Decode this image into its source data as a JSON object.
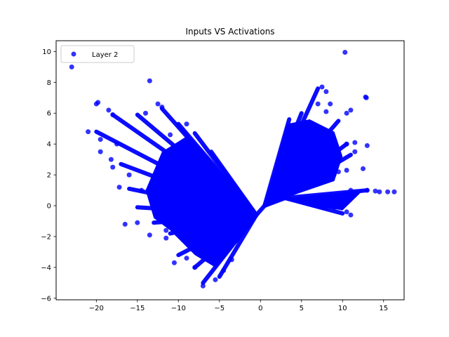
{
  "chart_data": {
    "type": "scatter",
    "title": "Inputs VS Activations",
    "xlabel": "",
    "ylabel": "",
    "xlim": [
      -24.9,
      17.5
    ],
    "ylim": [
      -6.1,
      10.7
    ],
    "xticks": [
      -20,
      -15,
      -10,
      -5,
      0,
      5,
      10,
      15
    ],
    "yticks": [
      -6,
      -4,
      -2,
      0,
      2,
      4,
      6,
      8,
      10
    ],
    "grid": false,
    "legend_position": "top-left",
    "series": [
      {
        "name": "Layer 2",
        "color": "#0000ff",
        "fan_segments": [
          {
            "from": [
              -0.5,
              -0.6
            ],
            "to": [
              -20,
              4.8
            ]
          },
          {
            "from": [
              -0.5,
              -0.6
            ],
            "to": [
              -18,
              5.9
            ]
          },
          {
            "from": [
              -0.5,
              -0.6
            ],
            "to": [
              -15,
              5.9
            ]
          },
          {
            "from": [
              -0.5,
              -0.6
            ],
            "to": [
              -12,
              6.3
            ]
          },
          {
            "from": [
              -0.5,
              -0.6
            ],
            "to": [
              -10,
              5.3
            ]
          },
          {
            "from": [
              -0.5,
              -0.6
            ],
            "to": [
              -8,
              4.7
            ]
          },
          {
            "from": [
              -0.5,
              -0.6
            ],
            "to": [
              -6,
              3.5
            ]
          },
          {
            "from": [
              -0.5,
              -0.6
            ],
            "to": [
              -17,
              2.7
            ]
          },
          {
            "from": [
              -0.5,
              -0.6
            ],
            "to": [
              -16,
              1.1
            ]
          },
          {
            "from": [
              -0.5,
              -0.6
            ],
            "to": [
              -15,
              -0.1
            ]
          },
          {
            "from": [
              -0.5,
              -0.6
            ],
            "to": [
              -13,
              -1.1
            ]
          },
          {
            "from": [
              -0.5,
              -0.6
            ],
            "to": [
              -11,
              -1.8
            ]
          },
          {
            "from": [
              -0.5,
              -0.6
            ],
            "to": [
              -10,
              -3.2
            ]
          },
          {
            "from": [
              -0.5,
              -0.6
            ],
            "to": [
              -8,
              -4.0
            ]
          },
          {
            "from": [
              -0.5,
              -0.6
            ],
            "to": [
              -7,
              -5.0
            ]
          },
          {
            "from": [
              -0.5,
              -0.6
            ],
            "to": [
              -5,
              -4.6
            ]
          },
          {
            "from": [
              -0.5,
              -0.6
            ],
            "to": [
              -3,
              -2.3
            ]
          },
          {
            "from": [
              -0.5,
              -0.6
            ],
            "to": [
              0.5,
              0
            ]
          },
          {
            "from": [
              0.5,
              0
            ],
            "to": [
              3.5,
              5.6
            ]
          },
          {
            "from": [
              0.5,
              0
            ],
            "to": [
              5,
              6.0
            ]
          },
          {
            "from": [
              0.5,
              0
            ],
            "to": [
              7,
              7.6
            ]
          },
          {
            "from": [
              0.5,
              0
            ],
            "to": [
              9.5,
              5.5
            ]
          },
          {
            "from": [
              0.5,
              0
            ],
            "to": [
              10.5,
              4.0
            ]
          },
          {
            "from": [
              0.5,
              0
            ],
            "to": [
              11,
              3.3
            ]
          },
          {
            "from": [
              0.5,
              0
            ],
            "to": [
              9,
              2.0
            ]
          },
          {
            "from": [
              0.5,
              0
            ],
            "to": [
              3,
              0.5
            ]
          },
          {
            "from": [
              3,
              0.5
            ],
            "to": [
              13,
              1.0
            ]
          },
          {
            "from": [
              3,
              0.5
            ],
            "to": [
              10,
              -0.5
            ]
          },
          {
            "from": [
              3,
              0.5
            ],
            "to": [
              8,
              -0.2
            ]
          }
        ],
        "points": [
          [
            -23,
            9.0
          ],
          [
            -13.5,
            8.1
          ],
          [
            10.3,
            9.95
          ],
          [
            -21,
            4.8
          ],
          [
            -20,
            6.6
          ],
          [
            -19.8,
            6.7
          ],
          [
            -18.5,
            6.2
          ],
          [
            -18,
            5.9
          ],
          [
            -17.5,
            4.0
          ],
          [
            -18,
            2.5
          ],
          [
            -17.2,
            1.2
          ],
          [
            -16.5,
            -1.2
          ],
          [
            -15,
            -1.1
          ],
          [
            -14,
            6.0
          ],
          [
            -12.5,
            6.6
          ],
          [
            -12,
            6.4
          ],
          [
            -9,
            5.3
          ],
          [
            -11,
            4.6
          ],
          [
            -19.5,
            4.3
          ],
          [
            -19.5,
            3.5
          ],
          [
            -18.2,
            3.0
          ],
          [
            -16,
            2.0
          ],
          [
            -14.5,
            1.0
          ],
          [
            -12,
            -0.5
          ],
          [
            -11.5,
            -1.6
          ],
          [
            -13.5,
            -1.9
          ],
          [
            -11.5,
            -2.1
          ],
          [
            -10.5,
            -3.7
          ],
          [
            -9,
            -3.4
          ],
          [
            -8,
            -4.0
          ],
          [
            -7,
            -5.2
          ],
          [
            -5.5,
            -4.8
          ],
          [
            -4.5,
            -4.2
          ],
          [
            -3.5,
            -3.5
          ],
          [
            -6,
            -3.0
          ],
          [
            7.5,
            7.7
          ],
          [
            8,
            7.4
          ],
          [
            8.5,
            6.6
          ],
          [
            7,
            6.6
          ],
          [
            8,
            6.1
          ],
          [
            10.5,
            6.0
          ],
          [
            11,
            6.2
          ],
          [
            12.8,
            7.05
          ],
          [
            12.9,
            7.0
          ],
          [
            13,
            3.9
          ],
          [
            11.5,
            4.1
          ],
          [
            10.5,
            4.0
          ],
          [
            11.5,
            3.5
          ],
          [
            12.5,
            2.4
          ],
          [
            10.5,
            2.3
          ],
          [
            9.5,
            2.2
          ],
          [
            13,
            1.0
          ],
          [
            14,
            0.95
          ],
          [
            14.5,
            0.9
          ],
          [
            15.5,
            0.9
          ],
          [
            16.3,
            0.9
          ],
          [
            11,
            1.0
          ],
          [
            11,
            -0.6
          ],
          [
            10.5,
            -0.4
          ],
          [
            9,
            -0.1
          ]
        ]
      }
    ]
  }
}
